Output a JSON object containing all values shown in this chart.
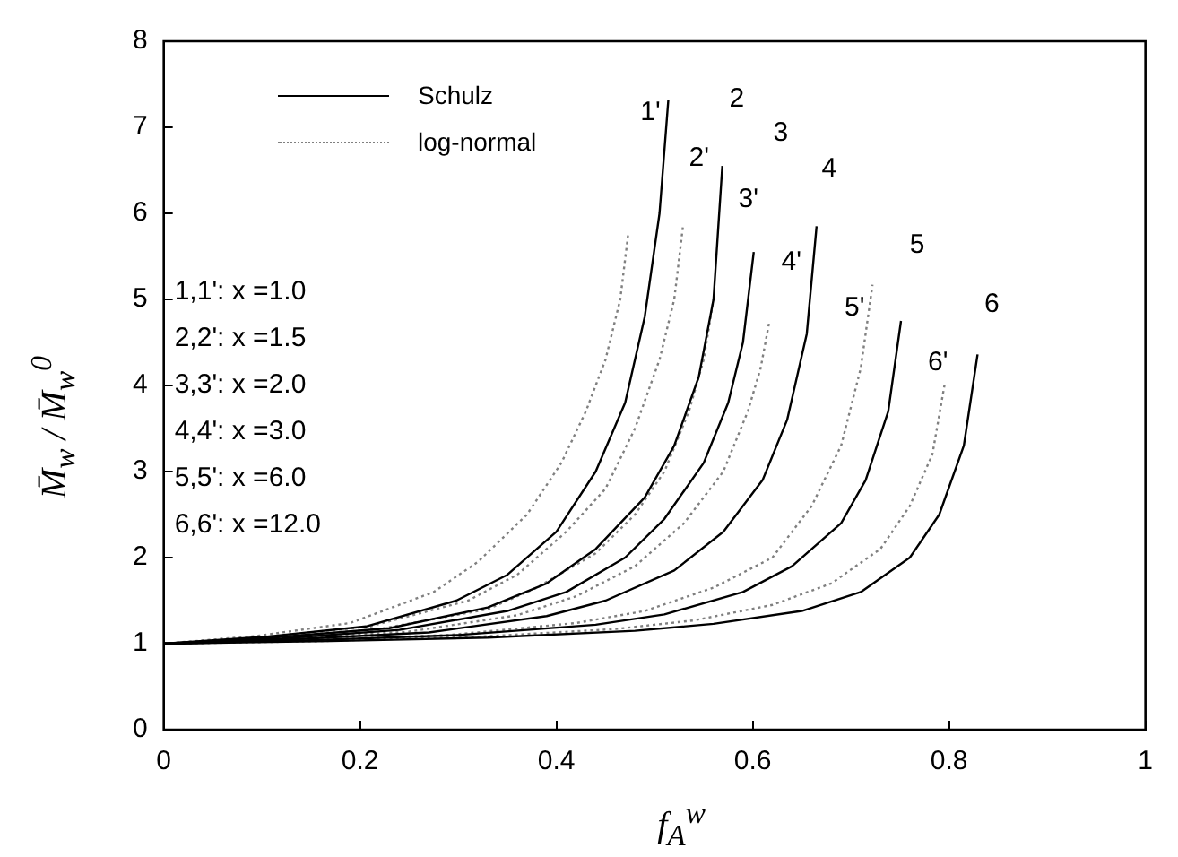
{
  "chart_data": {
    "type": "line",
    "xlabel": "f$_{A}$$^{w}$",
    "ylabel": "M̄$_{w}$ / M̄$_{w}$$^{0}$",
    "xlim": [
      0,
      1
    ],
    "xticks": [
      0,
      0.2,
      0.4,
      0.6,
      0.8,
      1
    ],
    "ylim": [
      0,
      8
    ],
    "yticks": [
      0,
      1,
      2,
      3,
      4,
      5,
      6,
      7,
      8
    ],
    "grid": false,
    "legend": "top left",
    "marker": "none",
    "series": [
      {
        "name": "Schulz",
        "color": "#000000",
        "line_style": "solid",
        "x": [
          0,
          0.103,
          0.206,
          0.298,
          0.35,
          0.4,
          0.44,
          0.47,
          0.49,
          0.505,
          0.514
        ],
        "values": [
          1,
          1.08,
          1.2,
          1.5,
          1.8,
          2.3,
          3.0,
          3.8,
          4.8,
          6.0,
          7.32
        ]
      },
      {
        "color": "#000000",
        "line_style": "solid",
        "x": [
          0,
          0.11,
          0.23,
          0.33,
          0.39,
          0.44,
          0.49,
          0.52,
          0.545,
          0.56,
          0.569
        ],
        "values": [
          1,
          1.07,
          1.18,
          1.42,
          1.7,
          2.1,
          2.7,
          3.3,
          4.1,
          5.0,
          6.55
        ]
      },
      {
        "color": "#000000",
        "line_style": "solid",
        "x": [
          0,
          0.12,
          0.24,
          0.35,
          0.41,
          0.47,
          0.51,
          0.55,
          0.575,
          0.59,
          0.601
        ],
        "values": [
          1,
          1.06,
          1.16,
          1.38,
          1.6,
          2.0,
          2.45,
          3.1,
          3.8,
          4.5,
          5.55
        ]
      },
      {
        "color": "#000000",
        "line_style": "solid",
        "x": [
          0,
          0.13,
          0.27,
          0.39,
          0.45,
          0.52,
          0.57,
          0.61,
          0.635,
          0.655,
          0.665
        ],
        "values": [
          1,
          1.05,
          1.13,
          1.32,
          1.5,
          1.85,
          2.3,
          2.9,
          3.6,
          4.6,
          5.85
        ]
      },
      {
        "color": "#000000",
        "line_style": "solid",
        "x": [
          0,
          0.15,
          0.3,
          0.44,
          0.51,
          0.59,
          0.64,
          0.69,
          0.715,
          0.738,
          0.751
        ],
        "values": [
          1,
          1.04,
          1.1,
          1.22,
          1.34,
          1.6,
          1.9,
          2.4,
          2.9,
          3.7,
          4.75
        ]
      },
      {
        "color": "#000000",
        "line_style": "solid",
        "x": [
          0,
          0.17,
          0.33,
          0.48,
          0.56,
          0.65,
          0.71,
          0.76,
          0.79,
          0.815,
          0.829
        ],
        "values": [
          1,
          1.03,
          1.07,
          1.15,
          1.23,
          1.38,
          1.6,
          2.0,
          2.5,
          3.3,
          4.36
        ]
      },
      {
        "name": "log-normal",
        "color": "#808080",
        "line_style": "dotted",
        "x": [
          0,
          0.095,
          0.19,
          0.275,
          0.32,
          0.37,
          0.405,
          0.43,
          0.45,
          0.465,
          0.473
        ],
        "values": [
          1,
          1.09,
          1.24,
          1.6,
          1.95,
          2.5,
          3.1,
          3.7,
          4.3,
          5.0,
          5.75
        ]
      },
      {
        "color": "#808080",
        "line_style": "dotted",
        "x": [
          0,
          0.105,
          0.21,
          0.31,
          0.36,
          0.41,
          0.45,
          0.48,
          0.505,
          0.52,
          0.529
        ],
        "values": [
          1,
          1.08,
          1.2,
          1.5,
          1.8,
          2.3,
          2.8,
          3.5,
          4.3,
          5.0,
          5.86
        ]
      },
      {
        "color": "#808080",
        "line_style": "dotted",
        "x": [
          0,
          0.11,
          0.22,
          0.33,
          0.38,
          0.44,
          0.48,
          0.51,
          0.535,
          0.55,
          0.56
        ],
        "values": [
          1,
          1.07,
          1.17,
          1.4,
          1.65,
          2.05,
          2.5,
          3.0,
          3.7,
          4.3,
          5.0
        ]
      },
      {
        "color": "#808080",
        "line_style": "dotted",
        "x": [
          0,
          0.12,
          0.25,
          0.36,
          0.42,
          0.48,
          0.53,
          0.57,
          0.595,
          0.608,
          0.617
        ],
        "values": [
          1,
          1.06,
          1.14,
          1.33,
          1.55,
          1.9,
          2.4,
          3.0,
          3.7,
          4.2,
          4.75
        ]
      },
      {
        "color": "#808080",
        "line_style": "dotted",
        "x": [
          0,
          0.14,
          0.29,
          0.42,
          0.49,
          0.56,
          0.62,
          0.66,
          0.69,
          0.71,
          0.722
        ],
        "values": [
          1,
          1.04,
          1.1,
          1.24,
          1.38,
          1.65,
          2.0,
          2.6,
          3.3,
          4.2,
          5.17
        ]
      },
      {
        "color": "#808080",
        "line_style": "dotted",
        "x": [
          0,
          0.16,
          0.32,
          0.46,
          0.54,
          0.62,
          0.68,
          0.73,
          0.76,
          0.783,
          0.796
        ],
        "values": [
          1,
          1.03,
          1.08,
          1.17,
          1.27,
          1.45,
          1.7,
          2.1,
          2.6,
          3.2,
          4.05
        ]
      }
    ],
    "annotations": [
      "1'",
      "2",
      "2'",
      "3",
      "3'",
      "4",
      "4'",
      "5",
      "5'",
      "6",
      "6'",
      "1,1': x =1.0",
      "2,2': x =1.5",
      "3,3': x =2.0",
      "4,4': x =3.0",
      "5,5': x =6.0",
      "6,6': x =12.0"
    ]
  }
}
